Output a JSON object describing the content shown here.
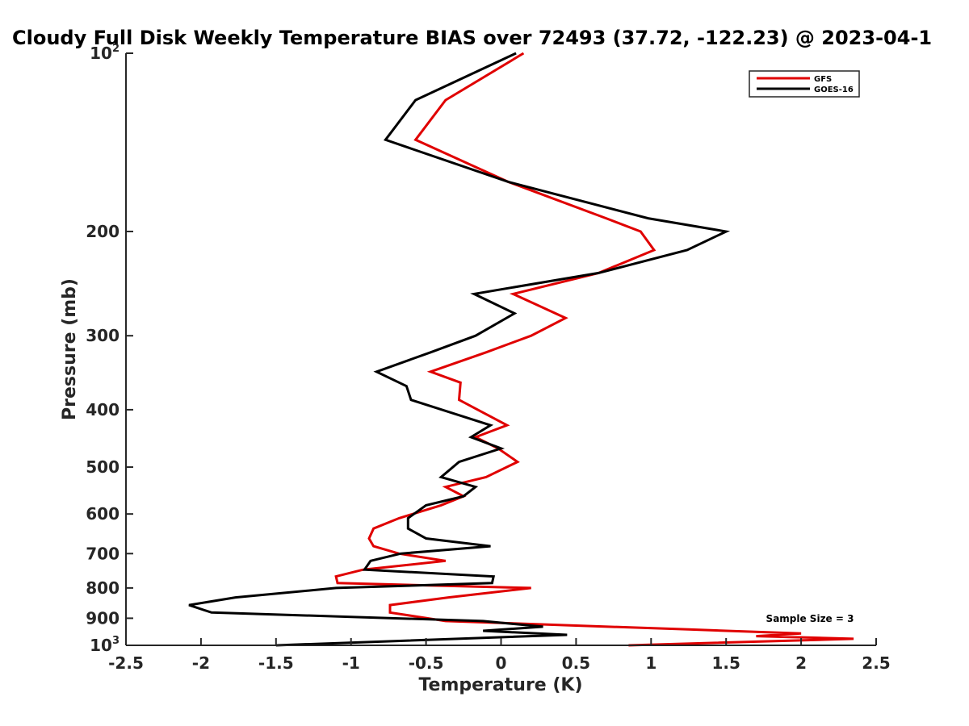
{
  "chart_data": {
    "type": "line",
    "title": "Cloudy Full Disk Weekly Temperature BIAS over 72493 (37.72, -122.23) @ 2023-04-1",
    "xlabel": "Temperature (K)",
    "ylabel": "Pressure (mb)",
    "xlim": [
      -2.5,
      2.5
    ],
    "ylim": [
      100,
      1000
    ],
    "y_scale": "log",
    "y_reversed": true,
    "x_ticks": [
      "-2.5",
      "-2",
      "-1.5",
      "-1",
      "-0.5",
      "0",
      "0.5",
      "1",
      "1.5",
      "2",
      "2.5"
    ],
    "y_ticks": [
      {
        "value": 100,
        "base": "10",
        "exp": "2"
      },
      {
        "value": 200,
        "label": "200"
      },
      {
        "value": 300,
        "label": "300"
      },
      {
        "value": 400,
        "label": "400"
      },
      {
        "value": 500,
        "label": "500"
      },
      {
        "value": 600,
        "label": "600"
      },
      {
        "value": 700,
        "label": "700"
      },
      {
        "value": 800,
        "label": "800"
      },
      {
        "value": 900,
        "label": "900"
      },
      {
        "value": 1000,
        "base": "10",
        "exp": "3"
      }
    ],
    "legend_position": "top-right",
    "grid": false,
    "annotation": "Sample Size = 3",
    "series": [
      {
        "name": "GFS",
        "color": "#e00000",
        "points": [
          [
            0.15,
            100
          ],
          [
            -0.37,
            120
          ],
          [
            -0.57,
            140
          ],
          [
            0.05,
            165
          ],
          [
            0.7,
            190
          ],
          [
            0.93,
            200
          ],
          [
            1.02,
            215
          ],
          [
            0.65,
            235
          ],
          [
            0.08,
            255
          ],
          [
            0.43,
            280
          ],
          [
            0.2,
            300
          ],
          [
            -0.1,
            320
          ],
          [
            -0.47,
            345
          ],
          [
            -0.27,
            360
          ],
          [
            -0.28,
            385
          ],
          [
            0.04,
            425
          ],
          [
            -0.17,
            445
          ],
          [
            -0.02,
            465
          ],
          [
            0.11,
            490
          ],
          [
            -0.1,
            520
          ],
          [
            -0.37,
            540
          ],
          [
            -0.25,
            560
          ],
          [
            -0.4,
            580
          ],
          [
            -0.68,
            610
          ],
          [
            -0.85,
            635
          ],
          [
            -0.88,
            660
          ],
          [
            -0.85,
            680
          ],
          [
            -0.68,
            700
          ],
          [
            -0.37,
            720
          ],
          [
            -0.92,
            745
          ],
          [
            -1.1,
            765
          ],
          [
            -1.09,
            785
          ],
          [
            0.2,
            800
          ],
          [
            -0.35,
            830
          ],
          [
            -0.74,
            855
          ],
          [
            -0.74,
            880
          ],
          [
            -0.37,
            910
          ],
          [
            1.25,
            940
          ],
          [
            2.0,
            955
          ],
          [
            1.7,
            965
          ],
          [
            2.35,
            975
          ],
          [
            0.85,
            1000
          ]
        ]
      },
      {
        "name": "GOES-16",
        "color": "#000000",
        "points": [
          [
            0.1,
            100
          ],
          [
            -0.57,
            120
          ],
          [
            -0.77,
            140
          ],
          [
            0.05,
            165
          ],
          [
            0.98,
            190
          ],
          [
            1.5,
            200
          ],
          [
            1.24,
            215
          ],
          [
            0.65,
            235
          ],
          [
            -0.18,
            255
          ],
          [
            0.09,
            275
          ],
          [
            -0.17,
            300
          ],
          [
            -0.47,
            320
          ],
          [
            -0.83,
            345
          ],
          [
            -0.63,
            365
          ],
          [
            -0.6,
            385
          ],
          [
            -0.07,
            425
          ],
          [
            -0.2,
            445
          ],
          [
            0.0,
            465
          ],
          [
            -0.28,
            490
          ],
          [
            -0.4,
            520
          ],
          [
            -0.17,
            540
          ],
          [
            -0.25,
            560
          ],
          [
            -0.5,
            580
          ],
          [
            -0.62,
            610
          ],
          [
            -0.62,
            635
          ],
          [
            -0.5,
            660
          ],
          [
            -0.07,
            680
          ],
          [
            -0.67,
            700
          ],
          [
            -0.87,
            720
          ],
          [
            -0.91,
            745
          ],
          [
            -0.05,
            765
          ],
          [
            -0.06,
            785
          ],
          [
            -1.1,
            800
          ],
          [
            -1.77,
            830
          ],
          [
            -2.08,
            855
          ],
          [
            -1.93,
            880
          ],
          [
            -0.12,
            910
          ],
          [
            0.28,
            930
          ],
          [
            -0.12,
            945
          ],
          [
            0.44,
            960
          ],
          [
            -1.5,
            1000
          ]
        ]
      }
    ]
  }
}
